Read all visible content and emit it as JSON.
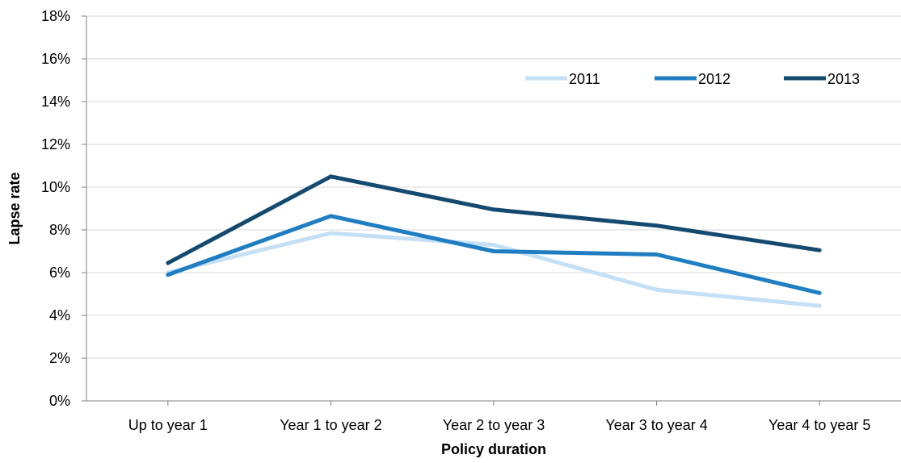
{
  "chart_data": {
    "type": "line",
    "categories": [
      "Up to year 1",
      "Year 1 to year 2",
      "Year 2 to year 3",
      "Year 3 to year 4",
      "Year 4 to year 5"
    ],
    "series": [
      {
        "name": "2011",
        "color": "#c5e0f4",
        "values": [
          6.0,
          7.85,
          7.3,
          5.2,
          4.45
        ]
      },
      {
        "name": "2012",
        "color": "#1f7ec2",
        "values": [
          5.9,
          8.65,
          7.0,
          6.85,
          5.05
        ]
      },
      {
        "name": "2013",
        "color": "#154a70",
        "values": [
          6.45,
          10.5,
          8.95,
          8.2,
          7.05
        ]
      }
    ],
    "xlabel": "Policy duration",
    "ylabel": "Lapse rate",
    "ylim": [
      0,
      18
    ],
    "yticks": [
      0,
      2,
      4,
      6,
      8,
      10,
      12,
      14,
      16,
      18
    ],
    "ytick_labels": [
      "0%",
      "2%",
      "4%",
      "6%",
      "8%",
      "10%",
      "12%",
      "14%",
      "16%",
      "18%"
    ],
    "grid": true,
    "legend_position": "top-right"
  }
}
